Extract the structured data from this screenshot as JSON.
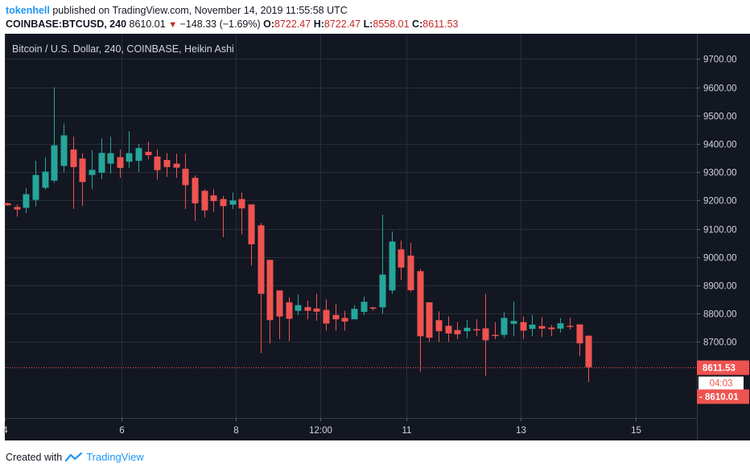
{
  "header": {
    "author": "tokenhell",
    "published_text": "published on TradingView.com, November 14, 2019 11:55:58 UTC",
    "symbol": "COINBASE:BTCUSD, 240",
    "last_price": "8610.01",
    "change": "−148.33 (−1.69%)",
    "open_label": "O:",
    "open": "8722.47",
    "high_label": "H:",
    "high": "8722.47",
    "low_label": "L:",
    "low": "8558.01",
    "close_label": "C:",
    "close": "8611.53"
  },
  "footer": {
    "created_with": "Created with",
    "brand": "TradingView"
  },
  "colors": {
    "background": "#131722",
    "grid": "#2a2e39",
    "up": "#26a69a",
    "down": "#ef5350",
    "axis_text": "#d1d4dc",
    "badge": "#ef5350"
  },
  "chart_data": {
    "type": "candlestick",
    "title": "Bitcoin / U.S. Dollar, 240, COINBASE, Heikin Ashi",
    "y_ticks": [
      "9700.00",
      "9600.00",
      "9500.00",
      "9400.00",
      "9300.00",
      "9200.00",
      "9100.00",
      "9000.00",
      "8900.00",
      "8800.00",
      "8700.00"
    ],
    "ylim": [
      8545,
      9755
    ],
    "x_ticks": [
      {
        "index": -0.3,
        "label": "4"
      },
      {
        "index": 12.2,
        "label": "6"
      },
      {
        "index": 24.4,
        "label": "8"
      },
      {
        "index": 33.4,
        "label": "12:00"
      },
      {
        "index": 42.6,
        "label": "11"
      },
      {
        "index": 54.8,
        "label": "13"
      },
      {
        "index": 67.0,
        "label": "15"
      }
    ],
    "price_labels": {
      "close": "8611.53",
      "countdown": "04:03",
      "last": "- 8610.01"
    },
    "candles": [
      {
        "o": 9190,
        "h": 9193,
        "l": 9182,
        "c": 9183
      },
      {
        "o": 9177,
        "h": 9186,
        "l": 9143,
        "c": 9168
      },
      {
        "o": 9174,
        "h": 9243,
        "l": 9156,
        "c": 9222
      },
      {
        "o": 9202,
        "h": 9340,
        "l": 9180,
        "c": 9290
      },
      {
        "o": 9245,
        "h": 9352,
        "l": 9238,
        "c": 9302
      },
      {
        "o": 9270,
        "h": 9600,
        "l": 9262,
        "c": 9395
      },
      {
        "o": 9322,
        "h": 9472,
        "l": 9300,
        "c": 9430
      },
      {
        "o": 9380,
        "h": 9425,
        "l": 9170,
        "c": 9318
      },
      {
        "o": 9348,
        "h": 9366,
        "l": 9180,
        "c": 9265
      },
      {
        "o": 9290,
        "h": 9378,
        "l": 9240,
        "c": 9308
      },
      {
        "o": 9298,
        "h": 9420,
        "l": 9275,
        "c": 9368
      },
      {
        "o": 9330,
        "h": 9425,
        "l": 9295,
        "c": 9367
      },
      {
        "o": 9353,
        "h": 9380,
        "l": 9280,
        "c": 9315
      },
      {
        "o": 9337,
        "h": 9445,
        "l": 9315,
        "c": 9367
      },
      {
        "o": 9340,
        "h": 9400,
        "l": 9300,
        "c": 9385
      },
      {
        "o": 9372,
        "h": 9408,
        "l": 9345,
        "c": 9360
      },
      {
        "o": 9355,
        "h": 9380,
        "l": 9274,
        "c": 9307
      },
      {
        "o": 9343,
        "h": 9367,
        "l": 9283,
        "c": 9318
      },
      {
        "o": 9330,
        "h": 9365,
        "l": 9280,
        "c": 9316
      },
      {
        "o": 9312,
        "h": 9366,
        "l": 9170,
        "c": 9254
      },
      {
        "o": 9280,
        "h": 9288,
        "l": 9128,
        "c": 9190
      },
      {
        "o": 9234,
        "h": 9240,
        "l": 9140,
        "c": 9165
      },
      {
        "o": 9218,
        "h": 9240,
        "l": 9160,
        "c": 9198
      },
      {
        "o": 9205,
        "h": 9216,
        "l": 9070,
        "c": 9180
      },
      {
        "o": 9185,
        "h": 9228,
        "l": 9170,
        "c": 9200
      },
      {
        "o": 9205,
        "h": 9228,
        "l": 9080,
        "c": 9172
      },
      {
        "o": 9186,
        "h": 9186,
        "l": 8970,
        "c": 9045
      },
      {
        "o": 9112,
        "h": 9120,
        "l": 8660,
        "c": 8870
      },
      {
        "o": 8990,
        "h": 8990,
        "l": 8695,
        "c": 8777
      },
      {
        "o": 8882,
        "h": 8882,
        "l": 8710,
        "c": 8790
      },
      {
        "o": 8840,
        "h": 8858,
        "l": 8703,
        "c": 8782
      },
      {
        "o": 8810,
        "h": 8868,
        "l": 8795,
        "c": 8830
      },
      {
        "o": 8823,
        "h": 8846,
        "l": 8780,
        "c": 8810
      },
      {
        "o": 8818,
        "h": 8870,
        "l": 8775,
        "c": 8807
      },
      {
        "o": 8813,
        "h": 8850,
        "l": 8740,
        "c": 8765
      },
      {
        "o": 8795,
        "h": 8835,
        "l": 8740,
        "c": 8780
      },
      {
        "o": 8785,
        "h": 8810,
        "l": 8740,
        "c": 8772
      },
      {
        "o": 8780,
        "h": 8830,
        "l": 8785,
        "c": 8817
      },
      {
        "o": 8806,
        "h": 8860,
        "l": 8795,
        "c": 8842
      },
      {
        "o": 8822,
        "h": 8824,
        "l": 8810,
        "c": 8820
      },
      {
        "o": 8822,
        "h": 9150,
        "l": 8800,
        "c": 8938
      },
      {
        "o": 8882,
        "h": 9090,
        "l": 8870,
        "c": 9055
      },
      {
        "o": 9027,
        "h": 9058,
        "l": 8920,
        "c": 8963
      },
      {
        "o": 9005,
        "h": 9050,
        "l": 8876,
        "c": 8883
      },
      {
        "o": 8950,
        "h": 8958,
        "l": 8595,
        "c": 8720
      },
      {
        "o": 8840,
        "h": 8840,
        "l": 8700,
        "c": 8715
      },
      {
        "o": 8777,
        "h": 8808,
        "l": 8700,
        "c": 8738
      },
      {
        "o": 8757,
        "h": 8790,
        "l": 8700,
        "c": 8730
      },
      {
        "o": 8742,
        "h": 8770,
        "l": 8710,
        "c": 8727
      },
      {
        "o": 8738,
        "h": 8778,
        "l": 8713,
        "c": 8750
      },
      {
        "o": 8745,
        "h": 8780,
        "l": 8720,
        "c": 8742
      },
      {
        "o": 8748,
        "h": 8870,
        "l": 8580,
        "c": 8706
      },
      {
        "o": 8725,
        "h": 8770,
        "l": 8710,
        "c": 8723
      },
      {
        "o": 8725,
        "h": 8805,
        "l": 8714,
        "c": 8785
      },
      {
        "o": 8764,
        "h": 8842,
        "l": 8720,
        "c": 8774
      },
      {
        "o": 8770,
        "h": 8790,
        "l": 8710,
        "c": 8740
      },
      {
        "o": 8746,
        "h": 8796,
        "l": 8720,
        "c": 8761
      },
      {
        "o": 8756,
        "h": 8788,
        "l": 8717,
        "c": 8747
      },
      {
        "o": 8751,
        "h": 8760,
        "l": 8720,
        "c": 8745
      },
      {
        "o": 8747,
        "h": 8784,
        "l": 8733,
        "c": 8766
      },
      {
        "o": 8757,
        "h": 8786,
        "l": 8744,
        "c": 8755
      },
      {
        "o": 8762,
        "h": 8762,
        "l": 8650,
        "c": 8695
      },
      {
        "o": 8722,
        "h": 8722,
        "l": 8558,
        "c": 8611
      }
    ]
  }
}
